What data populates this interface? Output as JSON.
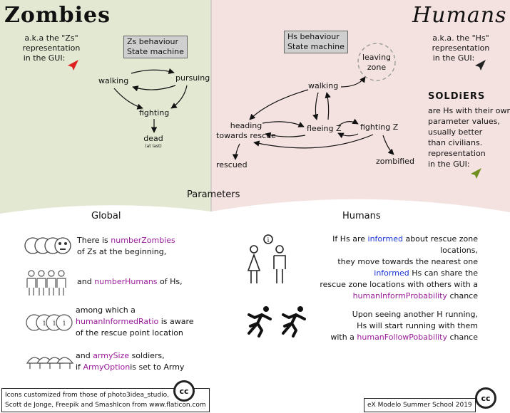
{
  "zombies": {
    "title": "Zombies",
    "repr_line1": "a.k.a the \"Zs\"",
    "repr_line2": "representation",
    "repr_line3": "in the GUI:",
    "sm_box_line1": "Zs behaviour",
    "sm_box_line2": "State machine",
    "states": {
      "walking": "walking",
      "pursuing": "pursuing",
      "fighting": "fighting",
      "dead": "dead",
      "dead_note": "(at last)"
    },
    "gui_color": "#e02020"
  },
  "humans": {
    "title": "Humans",
    "repr_line1": "a.k.a. the \"Hs\"",
    "repr_line2": "representation",
    "repr_line3": "in the GUI:",
    "sm_box_line1": "Hs behaviour",
    "sm_box_line2": "State machine",
    "states": {
      "leaving_zone_1": "leaving",
      "leaving_zone_2": "zone",
      "walking": "walking",
      "heading_1": "heading",
      "heading_2": "towards rescue",
      "fleeing": "fleeing Z",
      "fighting": "fighting Z",
      "rescued": "rescued",
      "zombified": "zombified"
    },
    "gui_color": "#222222",
    "soldiers": {
      "title": "SOLDiERS",
      "lines": [
        "are Hs with their own",
        "parameter values,",
        "usually better",
        "than civilians.",
        "representation",
        "in the GUI:"
      ],
      "gui_color": "#6f8f1f"
    }
  },
  "parameters": {
    "title": "Parameters",
    "global_title": "Global",
    "humans_title": "Humans",
    "global_items": [
      {
        "line1_pre": "There is ",
        "line1_param": "numberZombies",
        "line2": "of Zs at the beginning,"
      },
      {
        "pre": "and ",
        "param": "numberHumans",
        "post": " of Hs,"
      },
      {
        "line1": "among which a",
        "line2_param": "humanInformedRatio",
        "line2_post": " is aware",
        "line3": "of the rescue point location"
      },
      {
        "line1_pre": "and ",
        "line1_param": "armySize",
        "line1_post": " soldiers,",
        "line2_pre": "if ",
        "line2_param": "ArmyOption",
        "line2_post": "is set to Army"
      }
    ],
    "humans_items": [
      {
        "l1_pre": "If Hs are ",
        "l1_blue": "informed",
        "l1_post": " about rescue zone locations,",
        "l2": "they move towards the nearest one",
        "l3_blue": "informed",
        "l3_post": " Hs can share the",
        "l4": "rescue zone locations with others with a",
        "l5_param": "humanInformProbability",
        "l5_post": " chance"
      },
      {
        "l1": "Upon seeing another H running,",
        "l2": "Hs will start running with them",
        "l3_pre": "with a ",
        "l3_param": "humanFollowPobability",
        "l3_post": " chance"
      }
    ]
  },
  "footer": {
    "left_line1": "Icons customized from those of photo3idea_studio,",
    "left_line2": "Scott de Jonge, Freepik and  SmashIcon from www.flaticon.com",
    "right": "eX Modelo Summer School 2019",
    "cc_label": "cc"
  },
  "icons": {
    "zombie_heads": "zombie-heads-icon",
    "humans_group": "humans-group-icon",
    "informed_heads": "informed-heads-icon",
    "soldier_helmets": "soldier-helmets-icon",
    "info_people": "info-people-icon",
    "runners": "runners-icon",
    "creative_commons": "cc-icon"
  },
  "colors": {
    "zombie_bg": "#e3e8d2",
    "human_bg": "#f4e2e0",
    "param_highlight": "#9a1c9a",
    "informed_highlight": "#1a35d6"
  }
}
